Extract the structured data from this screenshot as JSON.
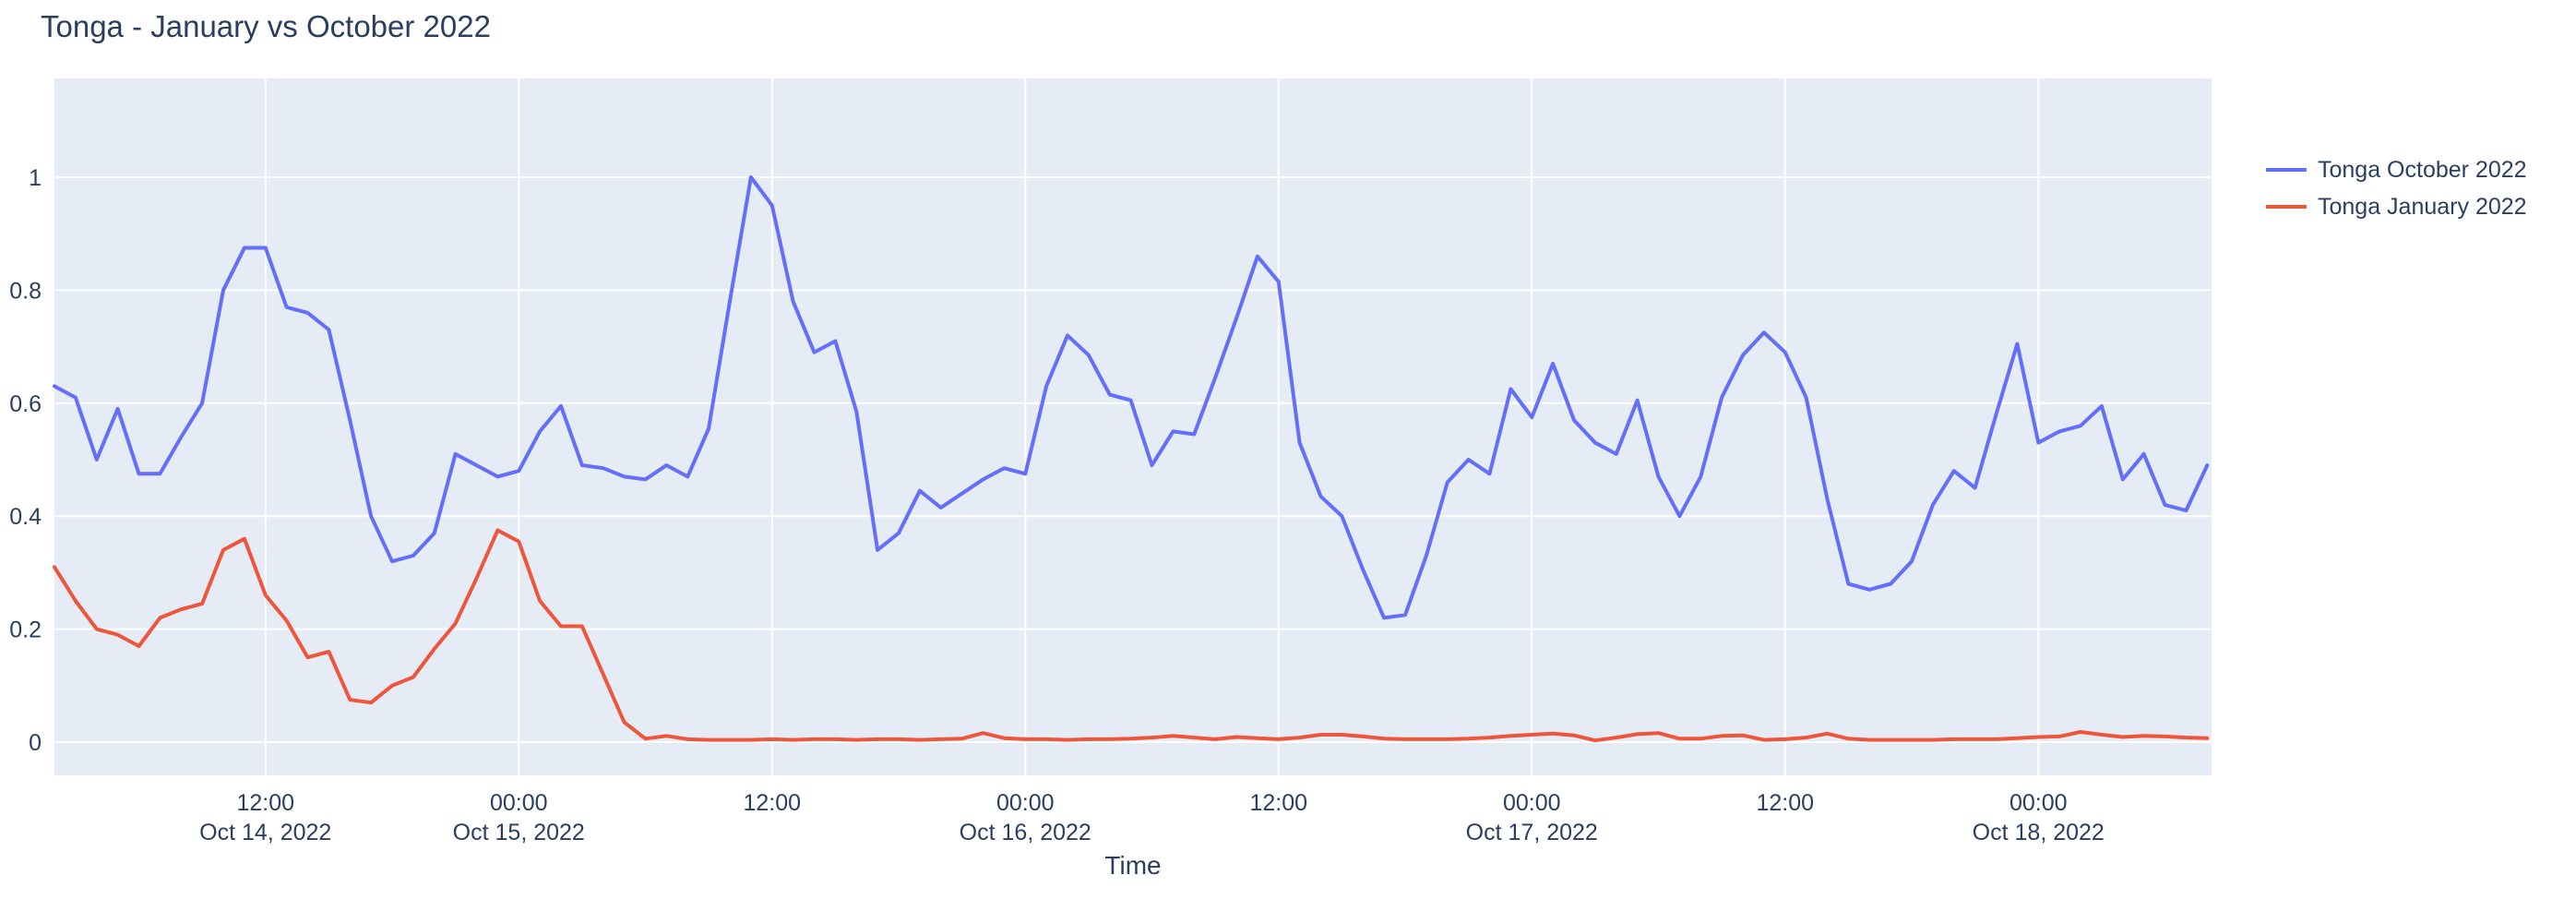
{
  "page": {
    "background": "#ffffff"
  },
  "chart_data": {
    "type": "line",
    "title": "Tonga - January vs October 2022",
    "xlabel": "Time",
    "ylabel": "",
    "plot_bgcolor": "#e5ecf6",
    "gridcolor": "#ffffff",
    "text_color": "#2a3f5f",
    "grid": true,
    "legend_position": "right",
    "ylim": [
      -0.06,
      1.18
    ],
    "y_ticks": [
      0,
      0.2,
      0.4,
      0.6,
      0.8,
      1
    ],
    "y_tick_labels": [
      "0",
      "0.2",
      "0.4",
      "0.6",
      "0.8",
      "1"
    ],
    "x_tick_info": [
      {
        "t": 10,
        "line1": "12:00",
        "line2": "Oct 14, 2022"
      },
      {
        "t": 22,
        "line1": "00:00",
        "line2": "Oct 15, 2022"
      },
      {
        "t": 34,
        "line1": "12:00",
        "line2": ""
      },
      {
        "t": 46,
        "line1": "00:00",
        "line2": "Oct 16, 2022"
      },
      {
        "t": 58,
        "line1": "12:00",
        "line2": ""
      },
      {
        "t": 70,
        "line1": "00:00",
        "line2": "Oct 17, 2022"
      },
      {
        "t": 82,
        "line1": "12:00",
        "line2": ""
      },
      {
        "t": 94,
        "line1": "00:00",
        "line2": "Oct 18, 2022"
      }
    ],
    "x_timestamps": [
      "2022-10-14 02:00",
      "2022-10-14 03:00",
      "2022-10-14 04:00",
      "2022-10-14 05:00",
      "2022-10-14 06:00",
      "2022-10-14 07:00",
      "2022-10-14 08:00",
      "2022-10-14 09:00",
      "2022-10-14 10:00",
      "2022-10-14 11:00",
      "2022-10-14 12:00",
      "2022-10-14 13:00",
      "2022-10-14 14:00",
      "2022-10-14 15:00",
      "2022-10-14 16:00",
      "2022-10-14 17:00",
      "2022-10-14 18:00",
      "2022-10-14 19:00",
      "2022-10-14 20:00",
      "2022-10-14 21:00",
      "2022-10-14 22:00",
      "2022-10-14 23:00",
      "2022-10-15 00:00",
      "2022-10-15 01:00",
      "2022-10-15 02:00",
      "2022-10-15 03:00",
      "2022-10-15 04:00",
      "2022-10-15 05:00",
      "2022-10-15 06:00",
      "2022-10-15 07:00",
      "2022-10-15 08:00",
      "2022-10-15 09:00",
      "2022-10-15 10:00",
      "2022-10-15 11:00",
      "2022-10-15 12:00",
      "2022-10-15 13:00",
      "2022-10-15 14:00",
      "2022-10-15 15:00",
      "2022-10-15 16:00",
      "2022-10-15 17:00",
      "2022-10-15 18:00",
      "2022-10-15 19:00",
      "2022-10-15 20:00",
      "2022-10-15 21:00",
      "2022-10-15 22:00",
      "2022-10-15 23:00",
      "2022-10-16 00:00",
      "2022-10-16 01:00",
      "2022-10-16 02:00",
      "2022-10-16 03:00",
      "2022-10-16 04:00",
      "2022-10-16 05:00",
      "2022-10-16 06:00",
      "2022-10-16 07:00",
      "2022-10-16 08:00",
      "2022-10-16 09:00",
      "2022-10-16 10:00",
      "2022-10-16 11:00",
      "2022-10-16 12:00",
      "2022-10-16 13:00",
      "2022-10-16 14:00",
      "2022-10-16 15:00",
      "2022-10-16 16:00",
      "2022-10-16 17:00",
      "2022-10-16 18:00",
      "2022-10-16 19:00",
      "2022-10-16 20:00",
      "2022-10-16 21:00",
      "2022-10-16 22:00",
      "2022-10-16 23:00",
      "2022-10-17 00:00",
      "2022-10-17 01:00",
      "2022-10-17 02:00",
      "2022-10-17 03:00",
      "2022-10-17 04:00",
      "2022-10-17 05:00",
      "2022-10-17 06:00",
      "2022-10-17 07:00",
      "2022-10-17 08:00",
      "2022-10-17 09:00",
      "2022-10-17 10:00",
      "2022-10-17 11:00",
      "2022-10-17 12:00",
      "2022-10-17 13:00",
      "2022-10-17 14:00",
      "2022-10-17 15:00",
      "2022-10-17 16:00",
      "2022-10-17 17:00",
      "2022-10-17 18:00",
      "2022-10-17 19:00",
      "2022-10-17 20:00",
      "2022-10-17 21:00",
      "2022-10-17 22:00",
      "2022-10-17 23:00",
      "2022-10-18 00:00",
      "2022-10-18 01:00",
      "2022-10-18 02:00",
      "2022-10-18 03:00",
      "2022-10-18 04:00",
      "2022-10-18 05:00",
      "2022-10-18 06:00",
      "2022-10-18 07:00",
      "2022-10-18 08:00"
    ],
    "series": [
      {
        "name": "Tonga October 2022",
        "color": "#636efa",
        "values": [
          0.63,
          0.61,
          0.5,
          0.59,
          0.475,
          0.475,
          0.54,
          0.6,
          0.8,
          0.875,
          0.875,
          0.77,
          0.76,
          0.73,
          0.57,
          0.4,
          0.32,
          0.33,
          0.37,
          0.51,
          0.49,
          0.47,
          0.48,
          0.55,
          0.595,
          0.49,
          0.485,
          0.47,
          0.465,
          0.49,
          0.47,
          0.555,
          0.78,
          1.0,
          0.95,
          0.78,
          0.69,
          0.71,
          0.585,
          0.34,
          0.37,
          0.445,
          0.415,
          0.44,
          0.465,
          0.485,
          0.475,
          0.63,
          0.72,
          0.685,
          0.615,
          0.605,
          0.49,
          0.55,
          0.545,
          0.645,
          0.75,
          0.86,
          0.815,
          0.53,
          0.435,
          0.4,
          0.305,
          0.22,
          0.225,
          0.33,
          0.46,
          0.5,
          0.475,
          0.625,
          0.575,
          0.67,
          0.57,
          0.53,
          0.51,
          0.605,
          0.47,
          0.4,
          0.47,
          0.61,
          0.685,
          0.725,
          0.69,
          0.61,
          0.43,
          0.28,
          0.27,
          0.28,
          0.32,
          0.42,
          0.48,
          0.45,
          0.58,
          0.705,
          0.53,
          0.55,
          0.56,
          0.595,
          0.465,
          0.51,
          0.42,
          0.41,
          0.49
        ]
      },
      {
        "name": "Tonga January 2022",
        "color": "#ef553b",
        "values": [
          0.31,
          0.25,
          0.2,
          0.19,
          0.17,
          0.22,
          0.235,
          0.245,
          0.34,
          0.36,
          0.26,
          0.215,
          0.15,
          0.16,
          0.075,
          0.07,
          0.1,
          0.115,
          0.165,
          0.21,
          0.29,
          0.375,
          0.355,
          0.25,
          0.205,
          0.205,
          0.12,
          0.035,
          0.006,
          0.011,
          0.005,
          0.004,
          0.004,
          0.004,
          0.005,
          0.004,
          0.005,
          0.005,
          0.004,
          0.005,
          0.005,
          0.004,
          0.005,
          0.006,
          0.016,
          0.007,
          0.005,
          0.005,
          0.004,
          0.005,
          0.005,
          0.006,
          0.008,
          0.011,
          0.008,
          0.005,
          0.009,
          0.007,
          0.005,
          0.008,
          0.013,
          0.013,
          0.01,
          0.006,
          0.005,
          0.005,
          0.005,
          0.006,
          0.008,
          0.011,
          0.013,
          0.015,
          0.012,
          0.003,
          0.008,
          0.014,
          0.016,
          0.006,
          0.006,
          0.011,
          0.012,
          0.004,
          0.005,
          0.008,
          0.015,
          0.006,
          0.004,
          0.004,
          0.004,
          0.004,
          0.005,
          0.005,
          0.005,
          0.007,
          0.009,
          0.01,
          0.018,
          0.013,
          0.009,
          0.011,
          0.01,
          0.008,
          0.007
        ]
      }
    ]
  }
}
